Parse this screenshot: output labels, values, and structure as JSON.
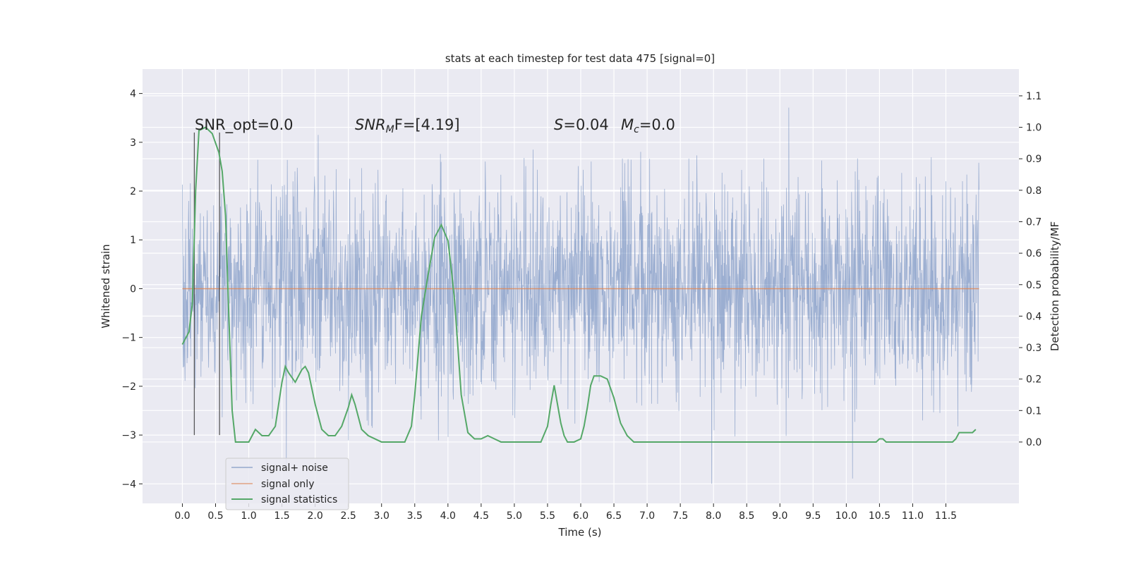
{
  "chart_data": {
    "type": "line",
    "title": "stats at each timestep for test data 475 [signal=0]",
    "xlabel": "Time (s)",
    "ylabel": "Whitened strain",
    "y2label": "Detection probability/MF",
    "xlim": [
      -0.6,
      12.6
    ],
    "ylim": [
      -4.4,
      4.5
    ],
    "y2lim": [
      -0.195,
      1.185
    ],
    "grid": true,
    "legend_position": "lower-left",
    "x_ticks": [
      "0.0",
      "0.5",
      "1.0",
      "1.5",
      "2.0",
      "2.5",
      "3.0",
      "3.5",
      "4.0",
      "4.5",
      "5.0",
      "5.5",
      "6.0",
      "6.5",
      "7.0",
      "7.5",
      "8.0",
      "8.5",
      "9.0",
      "9.5",
      "10.0",
      "10.5",
      "11.0",
      "11.5"
    ],
    "x_tick_values": [
      0,
      0.5,
      1,
      1.5,
      2,
      2.5,
      3,
      3.5,
      4,
      4.5,
      5,
      5.5,
      6,
      6.5,
      7,
      7.5,
      8,
      8.5,
      9,
      9.5,
      10,
      10.5,
      11,
      11.5
    ],
    "y_ticks": [
      "−4",
      "−3",
      "−2",
      "−1",
      "0",
      "1",
      "2",
      "3",
      "4"
    ],
    "y_tick_values": [
      -4,
      -3,
      -2,
      -1,
      0,
      1,
      2,
      3,
      4
    ],
    "y2_ticks": [
      "0.0",
      "0.1",
      "0.2",
      "0.3",
      "0.4",
      "0.5",
      "0.6",
      "0.7",
      "0.8",
      "0.9",
      "1.0",
      "1.1"
    ],
    "y2_tick_values": [
      0,
      0.1,
      0.2,
      0.3,
      0.4,
      0.5,
      0.6,
      0.7,
      0.8,
      0.9,
      1.0,
      1.1
    ],
    "annotations": {
      "snr_opt": "SNR_opt=0.0",
      "snr_mf_sym": "SNR",
      "snr_mf_sub": "M",
      "snr_mf_rest": "F=[4.19]",
      "s_sym": "S",
      "s_val": "=0.04",
      "mc_sym": "M",
      "mc_sub": "c",
      "mc_val": "=0.0"
    },
    "vertical_markers": [
      0.18,
      0.56
    ],
    "vertical_marker_range": [
      -3.0,
      3.2
    ],
    "series": [
      {
        "name": "signal+ noise",
        "color": "#4c72b0",
        "kind": "noise",
        "x_range": [
          0.0,
          12.0
        ],
        "envelope": [
          -4.0,
          4.0
        ],
        "description_stat": "whitened strain noise"
      },
      {
        "name": "signal only",
        "color": "#dd8452",
        "kind": "constant",
        "x": [
          0.0,
          12.0
        ],
        "y": [
          0.0,
          0.0
        ]
      },
      {
        "name": "signal statistics",
        "color": "#55a868",
        "axis": "right",
        "x": [
          0.0,
          0.1,
          0.15,
          0.2,
          0.25,
          0.35,
          0.45,
          0.5,
          0.55,
          0.6,
          0.65,
          0.7,
          0.75,
          0.8,
          0.85,
          0.9,
          1.0,
          1.1,
          1.2,
          1.3,
          1.4,
          1.5,
          1.55,
          1.6,
          1.7,
          1.8,
          1.85,
          1.9,
          2.0,
          2.1,
          2.2,
          2.3,
          2.4,
          2.5,
          2.55,
          2.6,
          2.7,
          2.8,
          3.0,
          3.2,
          3.35,
          3.45,
          3.5,
          3.6,
          3.7,
          3.8,
          3.9,
          4.0,
          4.05,
          4.1,
          4.2,
          4.3,
          4.4,
          4.5,
          4.6,
          4.7,
          4.8,
          5.0,
          5.2,
          5.4,
          5.5,
          5.55,
          5.6,
          5.65,
          5.7,
          5.75,
          5.8,
          5.9,
          6.0,
          6.05,
          6.1,
          6.15,
          6.2,
          6.3,
          6.4,
          6.5,
          6.6,
          6.7,
          6.8,
          6.9,
          7.0,
          7.5,
          8.0,
          9.0,
          9.4,
          9.6,
          10.0,
          10.4,
          10.45,
          10.5,
          10.55,
          10.6,
          10.8,
          11.0,
          11.5,
          11.6,
          11.65,
          11.7,
          11.8,
          11.9,
          11.95
        ],
        "y": [
          0.31,
          0.35,
          0.44,
          0.8,
          0.99,
          1.0,
          0.98,
          0.95,
          0.92,
          0.86,
          0.72,
          0.4,
          0.1,
          0.0,
          0.0,
          0.0,
          0.0,
          0.04,
          0.02,
          0.02,
          0.05,
          0.19,
          0.24,
          0.22,
          0.19,
          0.23,
          0.24,
          0.22,
          0.12,
          0.04,
          0.02,
          0.02,
          0.05,
          0.11,
          0.15,
          0.12,
          0.04,
          0.02,
          0.0,
          0.0,
          0.0,
          0.05,
          0.15,
          0.4,
          0.53,
          0.65,
          0.69,
          0.64,
          0.55,
          0.45,
          0.15,
          0.03,
          0.01,
          0.01,
          0.02,
          0.01,
          0.0,
          0.0,
          0.0,
          0.0,
          0.05,
          0.12,
          0.18,
          0.12,
          0.06,
          0.02,
          0.0,
          0.0,
          0.01,
          0.05,
          0.11,
          0.18,
          0.21,
          0.21,
          0.2,
          0.14,
          0.06,
          0.02,
          0.0,
          0.0,
          0.0,
          0.0,
          0.0,
          0.0,
          0.0,
          0.0,
          0.0,
          0.0,
          0.0,
          0.01,
          0.01,
          0.0,
          0.0,
          0.0,
          0.0,
          0.0,
          0.01,
          0.03,
          0.03,
          0.03,
          0.04
        ]
      }
    ]
  }
}
